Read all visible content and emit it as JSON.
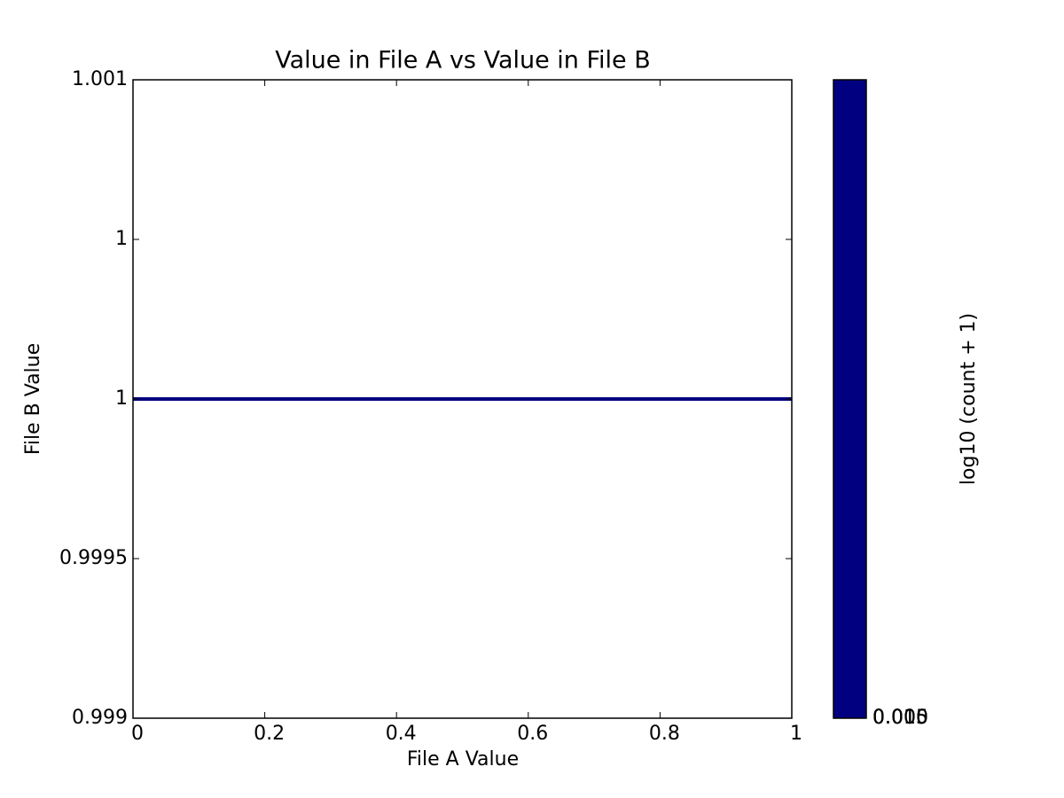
{
  "chart_data": {
    "type": "line",
    "title": "Value in File A vs Value in File B",
    "xlabel": "File A Value",
    "ylabel": "File B Value",
    "x": [
      0,
      1
    ],
    "series": [
      {
        "color": "#000080",
        "values": [
          1,
          1
        ]
      }
    ],
    "xlim": [
      0,
      1
    ],
    "xticks": [
      0,
      0.2,
      0.4,
      0.6,
      0.8,
      1
    ],
    "ylim": [
      0.999,
      1.001
    ],
    "yticks": [
      0.999,
      0.9995,
      1,
      {
        "value": 1.0005,
        "label": "1"
      },
      1.001
    ],
    "colorbar": {
      "label": "log10 (count + 1)",
      "color": "#000080",
      "ticks": [
        {
          "value": 0,
          "label": "0.000"
        },
        {
          "value": 0.005,
          "label": "0.005"
        },
        {
          "value": 0.01,
          "label": "0.010"
        },
        {
          "value": 0.015,
          "label": "0.015"
        }
      ]
    }
  }
}
